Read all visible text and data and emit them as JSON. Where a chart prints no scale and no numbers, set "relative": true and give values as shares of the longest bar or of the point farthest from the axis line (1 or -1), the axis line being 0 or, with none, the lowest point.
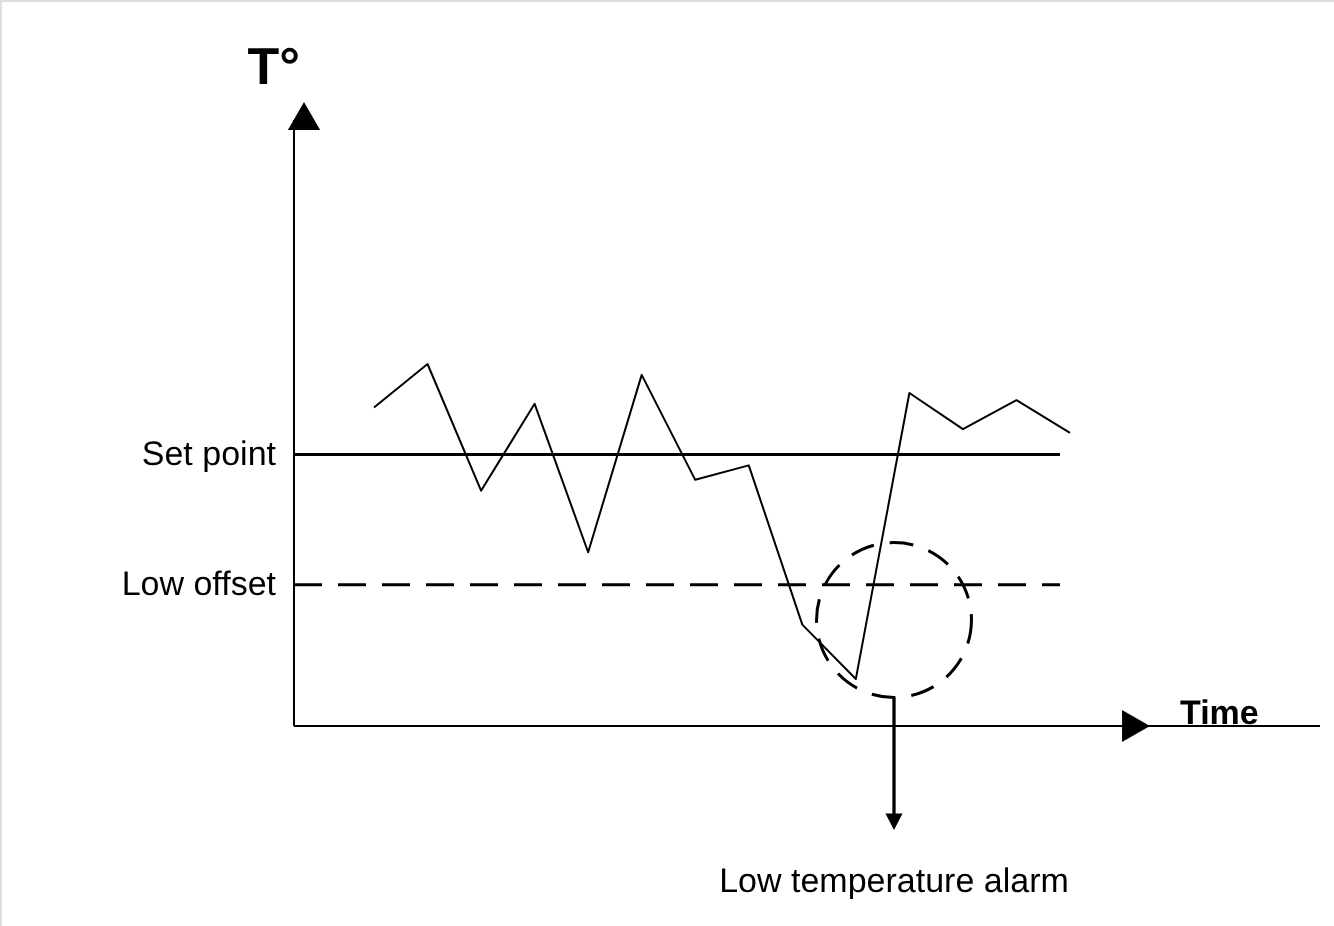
{
  "chart_data": {
    "type": "line",
    "relative": true,
    "color": "#000000",
    "xlabel": "Time",
    "categories": [
      null,
      null,
      null,
      null,
      null,
      null,
      null,
      null,
      null,
      null,
      null,
      null,
      null,
      null
    ],
    "values": [
      0.88,
      1.0,
      0.65,
      0.89,
      0.48,
      0.97,
      0.68,
      0.72,
      0.28,
      0.13,
      0.92,
      0.82,
      0.9,
      0.81
    ],
    "ref_lines": [
      {
        "axis": "y",
        "value": 0.75,
        "label": "Set point",
        "color": "#000000",
        "line_style": "solid"
      },
      {
        "axis": "y",
        "value": 0.39,
        "label": "Low offset",
        "color": "#000000",
        "line_style": "dashed"
      }
    ],
    "annotations": [
      "Low temperature alarm",
      "T°"
    ]
  }
}
